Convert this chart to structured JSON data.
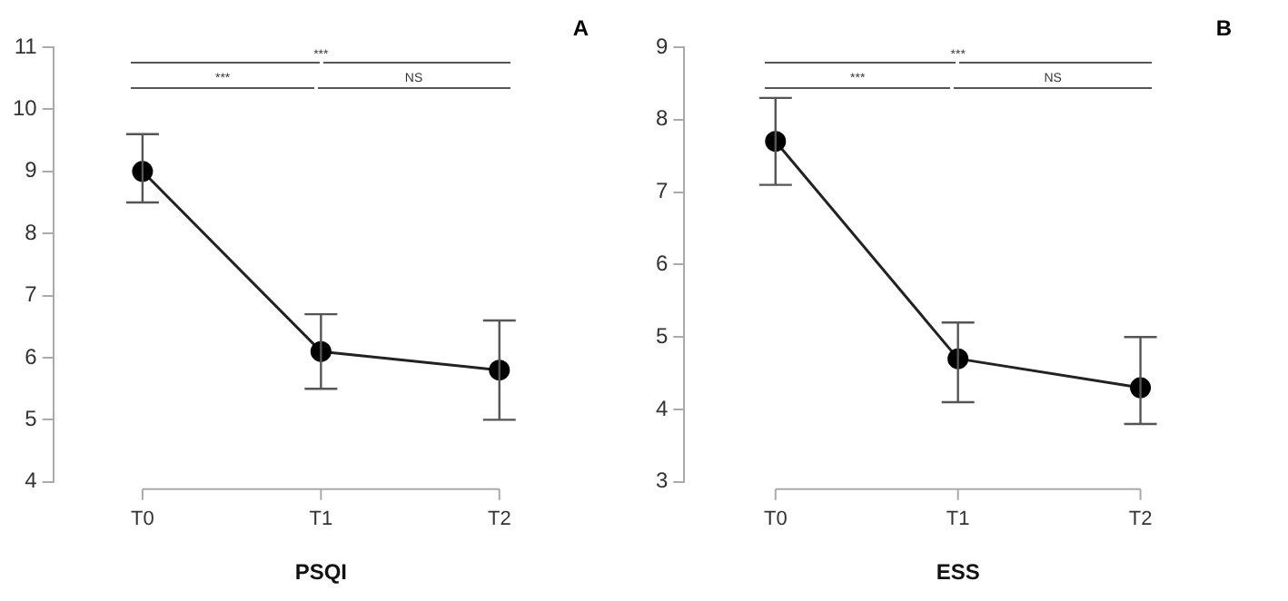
{
  "chart_data": [
    {
      "type": "line",
      "xlabel": "PSQI",
      "categories": [
        "T0",
        "T1",
        "T2"
      ],
      "series": [
        {
          "color": "#222222",
          "values": [
            9.0,
            6.1,
            5.8
          ],
          "errors": [
            [
              8.5,
              9.6
            ],
            [
              5.5,
              6.7
            ],
            [
              5.0,
              6.6
            ]
          ]
        }
      ],
      "ylim": [
        4,
        11
      ],
      "yticks": [
        4,
        5,
        6,
        7,
        8,
        9,
        10,
        11
      ],
      "grid": false,
      "legend": false,
      "marker": "circle",
      "line_style": "solid",
      "annotations": [
        "A",
        "***",
        "***",
        "NS"
      ]
    },
    {
      "type": "line",
      "xlabel": "ESS",
      "categories": [
        "T0",
        "T1",
        "T2"
      ],
      "series": [
        {
          "color": "#222222",
          "values": [
            7.7,
            4.7,
            4.3
          ],
          "errors": [
            [
              7.1,
              8.3
            ],
            [
              4.1,
              5.2
            ],
            [
              3.8,
              5.0
            ]
          ]
        }
      ],
      "ylim": [
        3,
        9
      ],
      "yticks": [
        3,
        4,
        5,
        6,
        7,
        8,
        9
      ],
      "grid": false,
      "legend": false,
      "marker": "circle",
      "line_style": "solid",
      "annotations": [
        "B",
        "***",
        "***",
        "NS"
      ]
    }
  ]
}
